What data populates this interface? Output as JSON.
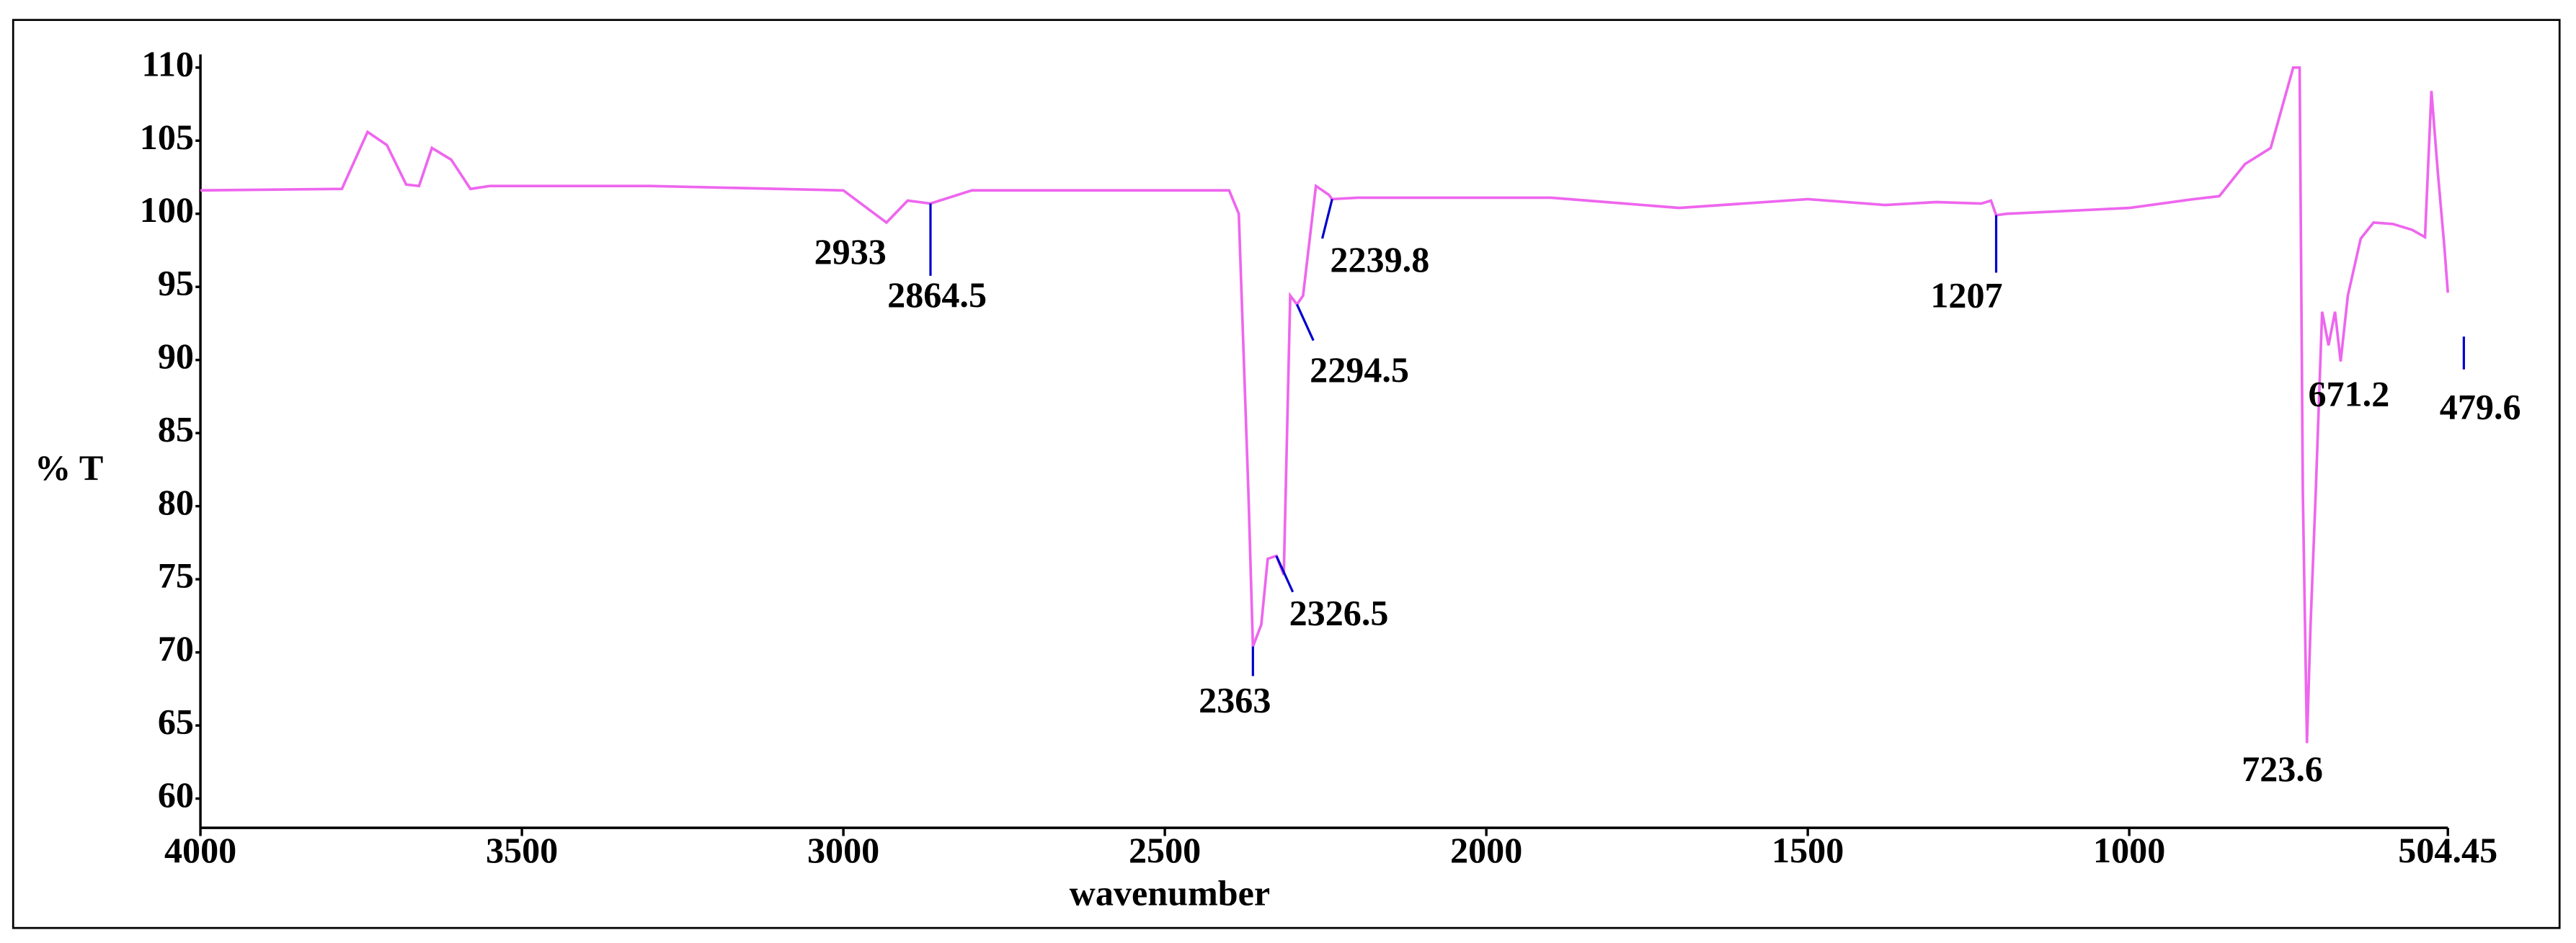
{
  "chart_data": {
    "type": "line",
    "xlabel": "wavenumber",
    "ylabel": "% T",
    "xlim": [
      4000,
      504.45
    ],
    "xticks": [
      4000,
      3500,
      3000,
      2500,
      2000,
      1500,
      1000,
      504.45
    ],
    "ylim": [
      58,
      110
    ],
    "yticks": [
      60,
      65,
      70,
      75,
      80,
      85,
      90,
      95,
      100,
      105,
      110
    ],
    "grid": false,
    "series": [
      {
        "color": "#ee66ee",
        "x": [
          4000,
          3780,
          3740,
          3710,
          3680,
          3660,
          3640,
          3610,
          3580,
          3550,
          3300,
          3000,
          2933,
          2900,
          2864.5,
          2800,
          2400,
          2385,
          2370,
          2363,
          2350,
          2340,
          2326.5,
          2315,
          2305,
          2294.5,
          2285,
          2265,
          2245,
          2239.8,
          2200,
          1900,
          1700,
          1500,
          1380,
          1300,
          1230,
          1215,
          1207,
          1190,
          1000,
          900,
          860,
          820,
          780,
          745,
          735,
          730,
          723.6,
          718,
          710,
          700,
          690,
          680,
          671.2,
          660,
          640,
          620,
          590,
          560,
          540,
          530,
          520,
          510,
          504.45
        ],
        "values": [
          101.6,
          101.7,
          105.6,
          104.7,
          102,
          101.9,
          104.5,
          103.7,
          101.7,
          101.9,
          101.9,
          101.6,
          99.4,
          100.9,
          100.7,
          101.6,
          101.6,
          100,
          80.9,
          70.4,
          71.9,
          76.4,
          76.6,
          75.3,
          94.4,
          93.8,
          94.4,
          101.9,
          101.3,
          101,
          101.1,
          101.1,
          100.4,
          101,
          100.6,
          100.8,
          100.7,
          100.9,
          99.9,
          100,
          100.4,
          101,
          101.2,
          103.4,
          104.5,
          110,
          110,
          80.9,
          63.8,
          71.9,
          80.9,
          93.3,
          91,
          93.3,
          89.9,
          94.4,
          98.3,
          99.4,
          99.3,
          98.9,
          98.4,
          108.4,
          102.8,
          97.8,
          94.6
        ]
      }
    ],
    "annotations": [
      {
        "text": "2933",
        "x": 2933,
        "y": 99.4
      },
      {
        "text": "2864.5",
        "x": 2864.5,
        "y": 100.7
      },
      {
        "text": "2239.8",
        "x": 2239.8,
        "y": 101
      },
      {
        "text": "2294.5",
        "x": 2294.5,
        "y": 93.8
      },
      {
        "text": "2326.5",
        "x": 2326.5,
        "y": 76.6
      },
      {
        "text": "2363",
        "x": 2363,
        "y": 70.4
      },
      {
        "text": "1207",
        "x": 1207,
        "y": 99.9
      },
      {
        "text": "723.6",
        "x": 723.6,
        "y": 63.8
      },
      {
        "text": "671.2",
        "x": 671.2,
        "y": 89.9
      },
      {
        "text": "479.6",
        "x": 479.6,
        "y": 91.6
      }
    ]
  }
}
